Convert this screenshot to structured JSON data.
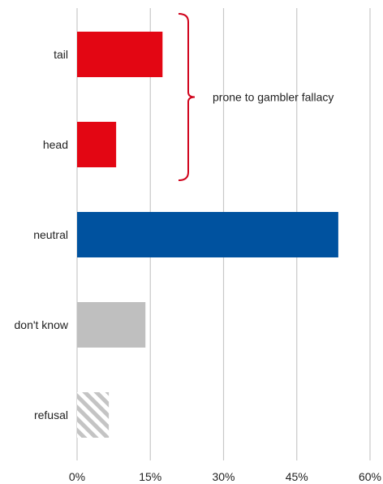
{
  "chart_data": {
    "type": "bar",
    "orientation": "horizontal",
    "categories": [
      "tail",
      "head",
      "neutral",
      "don't know",
      "refusal"
    ],
    "values": [
      17.5,
      8,
      53.5,
      14,
      6.5
    ],
    "bar_styles": [
      "solid-red",
      "solid-red",
      "solid-blue",
      "solid-gray",
      "hatched-gray"
    ],
    "xlim": [
      0,
      60
    ],
    "x_ticks": [
      0,
      15,
      30,
      45,
      60
    ],
    "x_tick_labels": [
      "0%",
      "15%",
      "30%",
      "45%",
      "60%"
    ],
    "grid": "vertical",
    "annotation": {
      "text": "prone to gambler fallacy",
      "brackets_categories": [
        "tail",
        "head"
      ]
    }
  },
  "colors": {
    "red": "#e30613",
    "blue": "#00529f",
    "gray": "#bfbfbf",
    "hatch": "#c4c4c4",
    "grid": "#c8c8c8",
    "bracket": "#d0021b"
  }
}
